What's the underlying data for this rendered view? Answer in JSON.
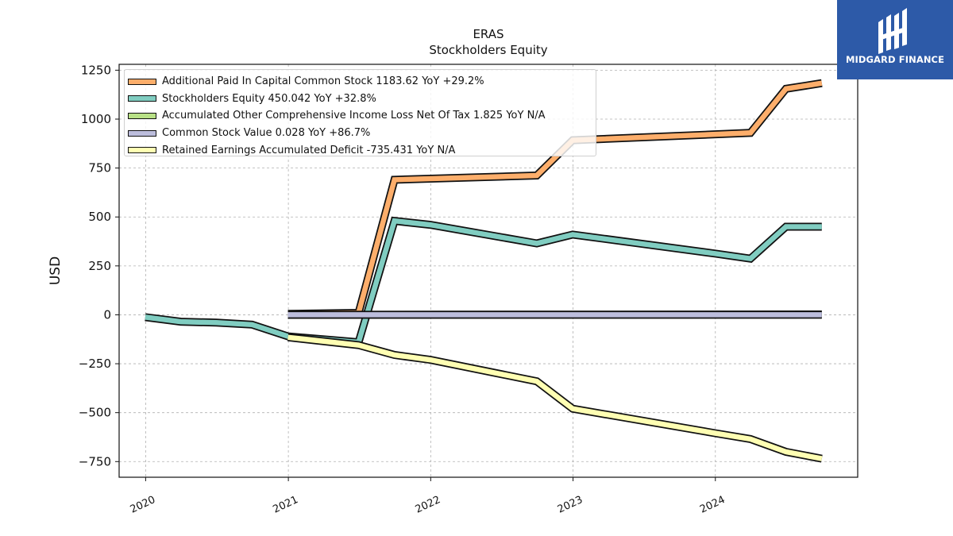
{
  "chart_data": {
    "type": "line",
    "title": "ERAS",
    "subtitle": "Stockholders  Equity",
    "ylabel": "USD",
    "xlabel": "",
    "ylim": [
      -830,
      1280
    ],
    "xlim": [
      "2019-10-25",
      "2024-12-31"
    ],
    "yticks": [
      -750,
      -500,
      -250,
      0,
      250,
      500,
      750,
      1000,
      1250
    ],
    "ytick_labels": [
      "−750",
      "−500",
      "−250",
      "0",
      "250",
      "500",
      "750",
      "1000",
      "1250"
    ],
    "xticks": [
      "2020-01-01",
      "2021-01-01",
      "2022-01-01",
      "2023-01-01",
      "2024-01-01"
    ],
    "xtick_labels": [
      "2020",
      "2021",
      "2022",
      "2023",
      "2024"
    ],
    "grid": true,
    "legend_position": "top-left",
    "series": [
      {
        "name": "Additional Paid In Capital Common Stock",
        "legend": "Additional Paid In Capital Common Stock  1183.62 YoY +29.2%",
        "color": "#fdae6b",
        "x": [
          "2020-12-31",
          "2021-06-30",
          "2021-09-30",
          "2022-09-30",
          "2022-12-31",
          "2024-03-31",
          "2024-06-30",
          "2024-09-30"
        ],
        "y": [
          5,
          10,
          690,
          712,
          892,
          930,
          1155,
          1184
        ]
      },
      {
        "name": "Stockholders Equity",
        "legend": "Stockholders Equity  450.042 YoY +32.8%",
        "color": "#80cdc1",
        "x": [
          "2019-12-31",
          "2020-03-31",
          "2020-06-30",
          "2020-09-30",
          "2020-12-31",
          "2021-06-30",
          "2021-09-30",
          "2021-12-31",
          "2022-09-30",
          "2022-12-31",
          "2023-12-31",
          "2024-03-31",
          "2024-06-30",
          "2024-09-30"
        ],
        "y": [
          -12,
          -35,
          -40,
          -50,
          -110,
          -140,
          480,
          460,
          365,
          410,
          313,
          287,
          450,
          450
        ]
      },
      {
        "name": "Accumulated Other Comprehensive Income Loss Net Of Tax",
        "legend": "Accumulated Other Comprehensive Income Loss Net Of Tax  1.825 YoY N/A",
        "color": "#b8e186",
        "x": [
          "2020-12-31",
          "2024-09-30"
        ],
        "y": [
          0,
          1.825
        ]
      },
      {
        "name": "Common Stock Value",
        "legend": "Common Stock Value  0.028 YoY +86.7%",
        "color": "#bcbddc",
        "x": [
          "2020-12-31",
          "2024-09-30"
        ],
        "y": [
          0.02,
          0.028
        ]
      },
      {
        "name": "Retained Earnings Accumulated Deficit",
        "legend": "Retained Earnings Accumulated Deficit  -735.431 YoY N/A",
        "color": "#ffffb3",
        "x": [
          "2020-12-31",
          "2021-06-30",
          "2021-09-30",
          "2021-12-31",
          "2022-09-30",
          "2022-12-31",
          "2023-12-31",
          "2024-03-31",
          "2024-06-30",
          "2024-09-30"
        ],
        "y": [
          -115,
          -155,
          -205,
          -230,
          -340,
          -480,
          -605,
          -635,
          -700,
          -735
        ]
      }
    ]
  },
  "logo": {
    "text": "MIDGARD FINANCE",
    "color": "#2d5aa8"
  }
}
